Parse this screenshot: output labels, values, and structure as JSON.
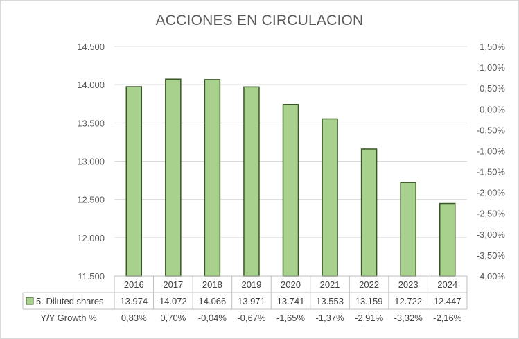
{
  "chart_data": {
    "type": "bar",
    "title": "ACCIONES EN CIRCULACION",
    "categories": [
      "2016",
      "2017",
      "2018",
      "2019",
      "2020",
      "2021",
      "2022",
      "2023",
      "2024"
    ],
    "series": [
      {
        "name": "5. Diluted shares",
        "values": [
          13974,
          14072,
          14066,
          13971,
          13741,
          13553,
          13159,
          12722,
          12447
        ],
        "labels": [
          "13.974",
          "14.072",
          "14.066",
          "13.971",
          "13.741",
          "13.553",
          "13.159",
          "12.722",
          "12.447"
        ],
        "color": "#a9d18e",
        "border_color": "#385723"
      },
      {
        "name": "Y/Y Growth %",
        "values": [
          0.83,
          0.7,
          -0.04,
          -0.67,
          -1.65,
          -1.37,
          -2.91,
          -3.32,
          -2.16
        ],
        "labels": [
          "0,83%",
          "0,70%",
          "-0,04%",
          "-0,67%",
          "-1,65%",
          "-1,37%",
          "-2,91%",
          "-3,32%",
          "-2,16%"
        ]
      }
    ],
    "ylim": [
      11500,
      14500
    ],
    "y_ticks": [
      "14.500",
      "14.000",
      "13.500",
      "13.000",
      "12.500",
      "12.000",
      "11.500"
    ],
    "y2lim": [
      -4.0,
      1.5
    ],
    "y2_ticks": [
      "1,50%",
      "1,00%",
      "0,50%",
      "0,00%",
      "-0,50%",
      "-1,00%",
      "-1,50%",
      "-2,00%",
      "-2,50%",
      "-3,00%",
      "-3,50%",
      "-4,00%"
    ],
    "grid": true,
    "legend": "data-table"
  }
}
